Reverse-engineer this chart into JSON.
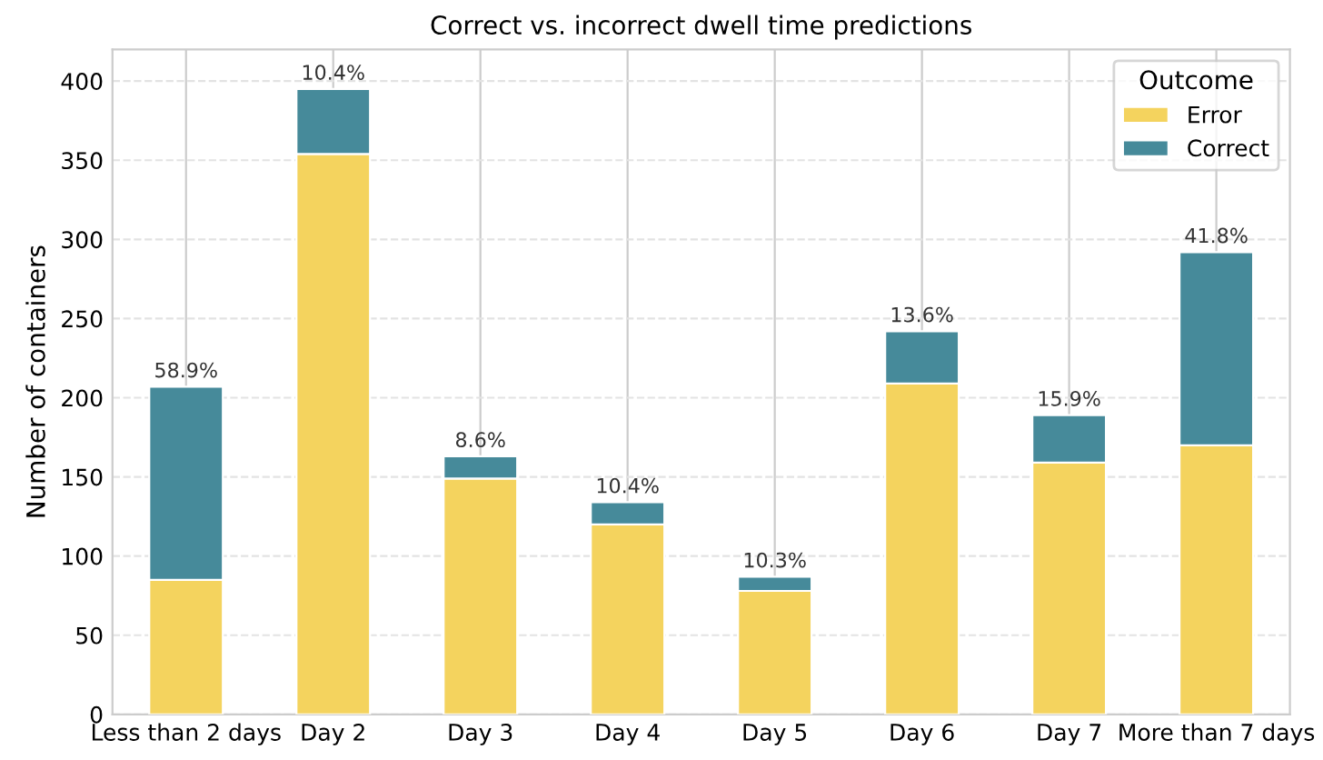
{
  "chart_data": {
    "type": "bar",
    "title": "Correct vs. incorrect dwell time predictions",
    "ylabel": "Number of containers",
    "legend_title": "Outcome",
    "categories": [
      "Less than 2 days",
      "Day 2",
      "Day 3",
      "Day 4",
      "Day 5",
      "Day 6",
      "Day 7",
      "More than 7 days"
    ],
    "stacked": true,
    "series": [
      {
        "name": "Error",
        "color": "#f4d35e",
        "values": [
          85,
          354,
          149,
          120,
          78,
          209,
          159,
          170
        ]
      },
      {
        "name": "Correct",
        "color": "#468a9a",
        "values": [
          122,
          41,
          14,
          14,
          9,
          33,
          30,
          122
        ]
      }
    ],
    "annotations": [
      {
        "text": "58.9%",
        "x": "Less than 2 days",
        "y": 207
      },
      {
        "text": "10.4%",
        "x": "Day 2",
        "y": 395
      },
      {
        "text": "8.6%",
        "x": "Day 3",
        "y": 163
      },
      {
        "text": "10.4%",
        "x": "Day 4",
        "y": 134
      },
      {
        "text": "10.3%",
        "x": "Day 5",
        "y": 87
      },
      {
        "text": "13.6%",
        "x": "Day 6",
        "y": 242
      },
      {
        "text": "15.9%",
        "x": "Day 7",
        "y": 189
      },
      {
        "text": "41.8%",
        "x": "More than 7 days",
        "y": 292
      }
    ],
    "ylim": [
      0,
      420
    ],
    "yticks": [
      0,
      50,
      100,
      150,
      200,
      250,
      300,
      350,
      400
    ],
    "grid": true,
    "legend": "top right"
  }
}
